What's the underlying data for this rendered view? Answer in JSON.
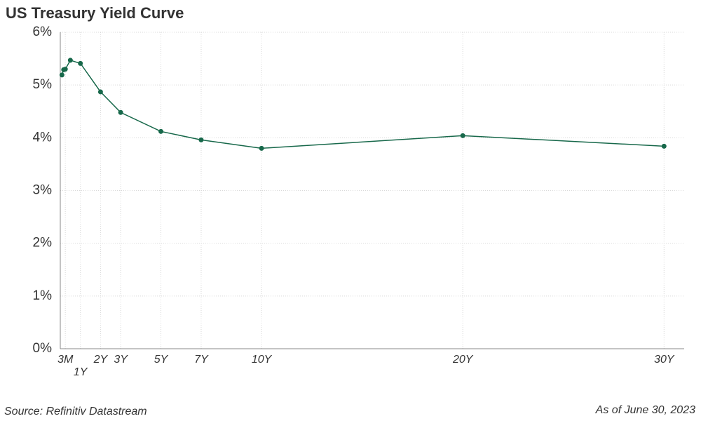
{
  "chart_data": {
    "type": "line",
    "title": "US Treasury Yield Curve",
    "source": "Source: Refinitiv Datastream",
    "note": "As of June 30, 2023",
    "x": [
      0.083,
      0.167,
      0.25,
      0.5,
      1,
      2,
      3,
      5,
      7,
      10,
      20,
      30
    ],
    "series": [
      {
        "name": "Yield",
        "color": "#17684a",
        "values": [
          5.19,
          5.29,
          5.3,
          5.47,
          5.41,
          4.87,
          4.48,
          4.12,
          3.96,
          3.8,
          4.04,
          3.84
        ]
      }
    ],
    "xlim": [
      0,
      31
    ],
    "xticks": [
      {
        "value": 0.25,
        "label": "3M"
      },
      {
        "value": 1,
        "label": "1Y"
      },
      {
        "value": 2,
        "label": "2Y"
      },
      {
        "value": 3,
        "label": "3Y"
      },
      {
        "value": 5,
        "label": "5Y"
      },
      {
        "value": 7,
        "label": "7Y"
      },
      {
        "value": 10,
        "label": "10Y"
      },
      {
        "value": 20,
        "label": "20Y"
      },
      {
        "value": 30,
        "label": "30Y"
      }
    ],
    "ylim": [
      0,
      6
    ],
    "yticks": [
      {
        "value": 0,
        "label": "0%"
      },
      {
        "value": 1,
        "label": "1%"
      },
      {
        "value": 2,
        "label": "2%"
      },
      {
        "value": 3,
        "label": "3%"
      },
      {
        "value": 4,
        "label": "4%"
      },
      {
        "value": 5,
        "label": "5%"
      },
      {
        "value": 6,
        "label": "6%"
      }
    ],
    "grid": true
  }
}
